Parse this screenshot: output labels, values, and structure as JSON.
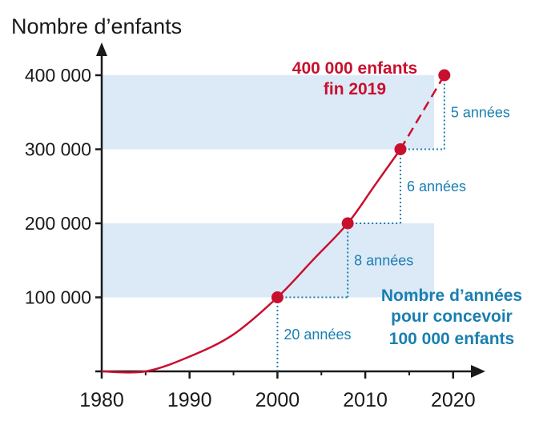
{
  "chart_data": {
    "type": "line",
    "ylabel": "Nombre d’enfants",
    "xlabel": "",
    "x_ticks": [
      "1980",
      "1990",
      "2000",
      "2010",
      "2020"
    ],
    "y_ticks": [
      "100 000",
      "200 000",
      "300 000",
      "400 000"
    ],
    "xlim": [
      1980,
      2022
    ],
    "ylim": [
      0,
      430000
    ],
    "series": [
      {
        "values": [
          {
            "x": 1980,
            "y": 0
          },
          {
            "x": 1985,
            "y": 0
          },
          {
            "x": 1990,
            "y": 20000
          },
          {
            "x": 1995,
            "y": 50000
          },
          {
            "x": 2000,
            "y": 100000
          },
          {
            "x": 2004,
            "y": 150000
          },
          {
            "x": 2008,
            "y": 200000
          },
          {
            "x": 2011,
            "y": 250000
          },
          {
            "x": 2014,
            "y": 300000
          },
          {
            "x": 2019,
            "y": 400000
          }
        ],
        "projected_from_x": 2014,
        "color": "#c8102e"
      }
    ],
    "milestones": [
      {
        "x": 2000,
        "y": 100000
      },
      {
        "x": 2008,
        "y": 200000
      },
      {
        "x": 2014,
        "y": 300000
      },
      {
        "x": 2019,
        "y": 400000
      }
    ],
    "steps": [
      {
        "from_x": 1980,
        "to_x": 2000,
        "y": 100000,
        "label": "20 années"
      },
      {
        "from_x": 2000,
        "to_x": 2008,
        "y": 200000,
        "label": "8 années"
      },
      {
        "from_x": 2008,
        "to_x": 2014,
        "y": 300000,
        "label": "6 années"
      },
      {
        "from_x": 2014,
        "to_x": 2019,
        "y": 400000,
        "label": "5 années"
      }
    ],
    "bands": [
      {
        "from_y": 100000,
        "to_y": 200000
      },
      {
        "from_y": 300000,
        "to_y": 400000
      }
    ],
    "annotations": {
      "top_red": [
        "400 000 enfants",
        "fin 2019"
      ],
      "right_blue": [
        "Nombre d’années",
        "pour concevoir",
        "100 000 enfants"
      ]
    },
    "colors": {
      "band": "#dce9f7",
      "line": "#c8102e",
      "step": "#1a7fb0",
      "axis": "#1a1a1a"
    },
    "grid": false
  }
}
